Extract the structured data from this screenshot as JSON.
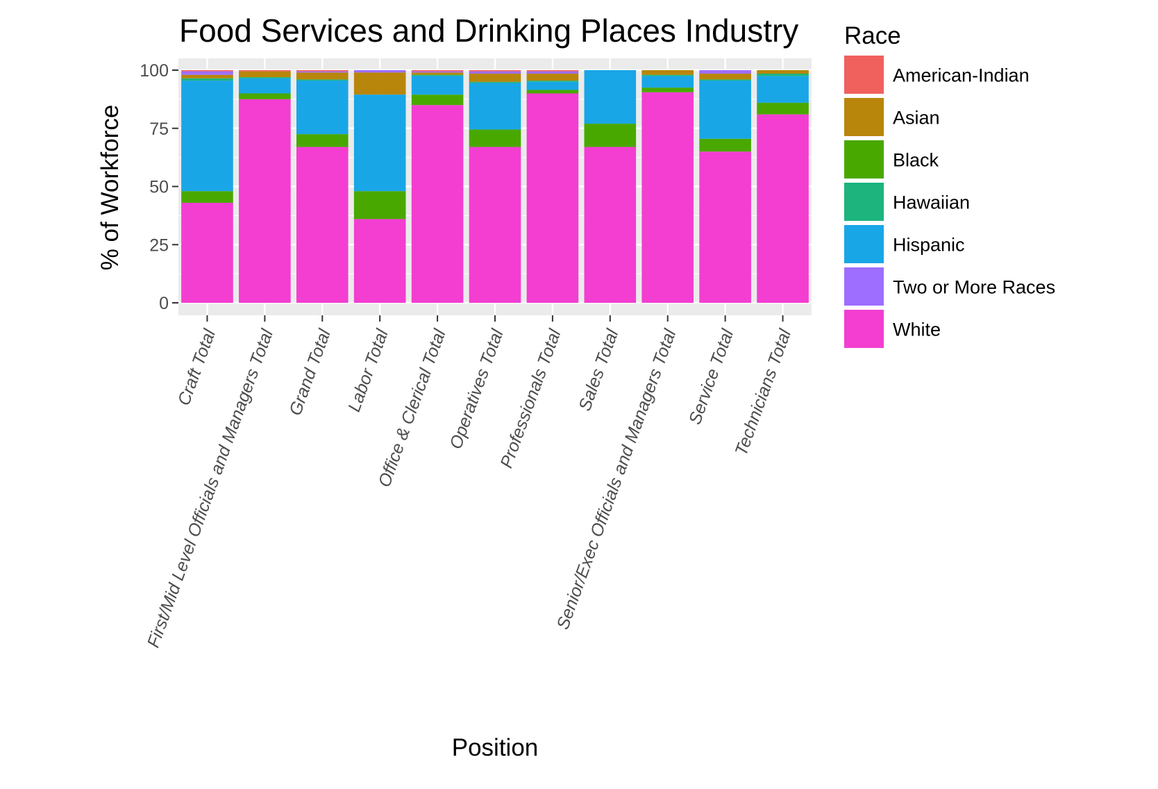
{
  "chart_data": {
    "type": "bar",
    "stacked": true,
    "title": "Food Services and Drinking Places Industry",
    "xlabel": "Position",
    "ylabel": "% of Workforce",
    "ylim": [
      0,
      100
    ],
    "yticks": [
      "0",
      "25",
      "50",
      "75",
      "100"
    ],
    "grid": true,
    "legend_position": "right",
    "legend_title": "Race",
    "categories": [
      "Craft Total",
      "First/Mid Level Officials and Managers Total",
      "Grand Total",
      "Labor Total",
      "Office & Clerical Total",
      "Operatives Total",
      "Professionals Total",
      "Sales Total",
      "Senior/Exec Officials and Managers Total",
      "Service Total",
      "Technicians Total"
    ],
    "series": [
      {
        "name": "White",
        "color": "#F8766D",
        "values": [
          43.0,
          87.5,
          67.0,
          36.0,
          85.0,
          67.0,
          90.0,
          67.0,
          90.5,
          65.0,
          81.0
        ],
        "fill": "#F33ED1"
      },
      {
        "name": "Black",
        "color": "#49A800",
        "values": [
          5.0,
          2.5,
          5.5,
          12.0,
          4.5,
          7.5,
          1.5,
          10.0,
          2.0,
          5.5,
          5.0
        ]
      },
      {
        "name": "Hispanic",
        "color": "#19A6E6",
        "values": [
          47.5,
          6.5,
          23.0,
          41.5,
          8.0,
          20.0,
          3.5,
          23.0,
          5.0,
          25.0,
          11.5
        ]
      },
      {
        "name": "Hawaiian",
        "color": "#1DB47D",
        "values": [
          1.0,
          0.5,
          0.5,
          0.0,
          0.5,
          0.5,
          0.5,
          0.0,
          0.5,
          0.5,
          1.0
        ]
      },
      {
        "name": "Asian",
        "color": "#B8860B",
        "values": [
          1.5,
          2.5,
          3.0,
          9.5,
          1.0,
          3.5,
          3.0,
          0.0,
          2.0,
          2.5,
          1.5
        ]
      },
      {
        "name": "Two or More Races",
        "color": "#9D6EFF",
        "values": [
          1.5,
          0.0,
          0.5,
          1.0,
          0.5,
          1.0,
          1.0,
          0.0,
          0.0,
          1.5,
          0.0
        ]
      },
      {
        "name": "American-Indian",
        "color": "#F0605D",
        "values": [
          0.5,
          0.5,
          0.5,
          0.0,
          0.5,
          0.5,
          0.5,
          0.0,
          0.0,
          0.0,
          0.0
        ]
      }
    ],
    "series_fill_colors": {
      "White": "#F33ED1",
      "Black": "#49A800",
      "Hispanic": "#19A6E6",
      "Hawaiian": "#1DB47D",
      "Asian": "#B8860B",
      "Two or More Races": "#9D6EFF",
      "American-Indian": "#F0605D"
    },
    "legend_order": [
      "American-Indian",
      "Asian",
      "Black",
      "Hawaiian",
      "Hispanic",
      "Two or More Races",
      "White"
    ]
  }
}
